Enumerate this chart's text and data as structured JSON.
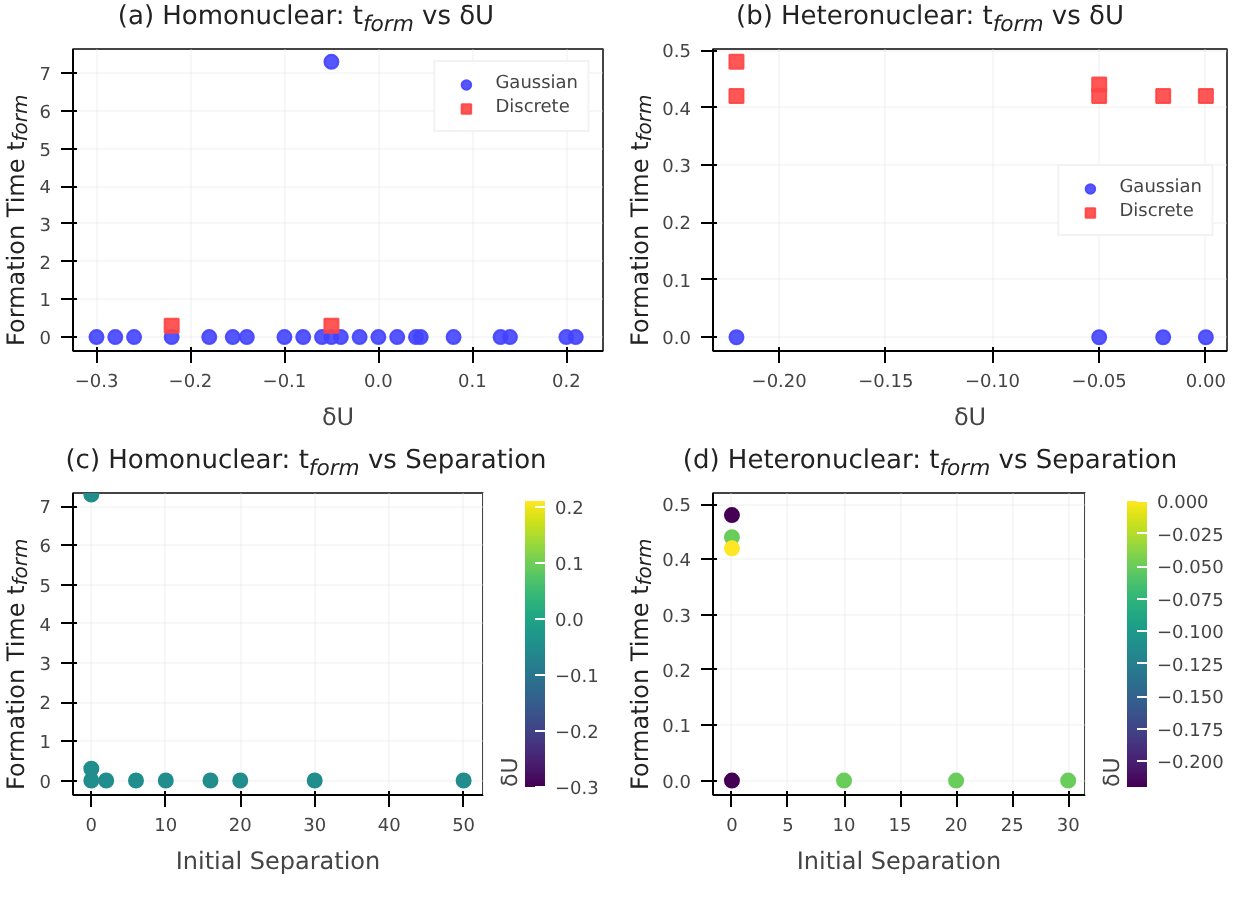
{
  "chart_data": [
    {
      "type": "scatter",
      "title": "(a) Homonuclear: t$_{form}$ vs δU",
      "xlabel": "δU",
      "ylabel": "Formation Time t$_{form}$",
      "xlim": [
        -0.325,
        0.239
      ],
      "ylim": [
        -0.37,
        7.64
      ],
      "xticks": [
        {
          "value": -0.3,
          "label": "−0.3"
        },
        {
          "value": -0.2,
          "label": "−0.2"
        },
        {
          "value": -0.1,
          "label": "−0.1"
        },
        {
          "value": 0,
          "label": "0.0"
        },
        {
          "value": 0.1,
          "label": "0.1"
        },
        {
          "value": 0.2,
          "label": "0.2"
        }
      ],
      "yticks": [
        0,
        1,
        2,
        3,
        4,
        5,
        6,
        7
      ],
      "grid": true,
      "legend": "top right",
      "series": [
        {
          "name": "Gaussian",
          "color": "#4444ff",
          "marker": "circle",
          "x": [
            -0.3,
            -0.28,
            -0.26,
            -0.22,
            -0.18,
            -0.155,
            -0.14,
            -0.1,
            -0.08,
            -0.06,
            -0.05,
            -0.04,
            -0.02,
            0,
            0.02,
            0.04,
            0.045,
            0.08,
            0.13,
            0.14,
            0.2,
            0.21,
            -0.05
          ],
          "values": [
            0,
            0,
            0,
            0,
            0,
            0,
            0,
            0,
            0,
            0,
            0,
            0,
            0,
            0,
            0,
            0,
            0,
            0,
            0,
            0,
            0,
            0,
            7.3
          ]
        },
        {
          "name": "Discrete",
          "color": "#ff4444",
          "marker": "square",
          "x": [
            -0.22,
            -0.05
          ],
          "values": [
            0.3,
            0.3
          ]
        }
      ]
    },
    {
      "type": "scatter",
      "title": "(b) Heteronuclear: t$_{form}$ vs δU",
      "xlabel": "δU",
      "ylabel": "Formation Time t$_{form}$",
      "xlim": [
        -0.231,
        0.0099
      ],
      "ylim": [
        -0.024,
        0.502
      ],
      "xticks": [
        {
          "value": -0.2,
          "label": "−0.20"
        },
        {
          "value": -0.15,
          "label": "−0.15"
        },
        {
          "value": -0.1,
          "label": "−0.10"
        },
        {
          "value": -0.05,
          "label": "−0.05"
        },
        {
          "value": 0,
          "label": "0.00"
        }
      ],
      "yticks": [
        {
          "value": 0,
          "label": "0.0"
        },
        0.1,
        0.2,
        0.3,
        0.4,
        0.5
      ],
      "grid": true,
      "legend": "right",
      "series": [
        {
          "name": "Gaussian",
          "color": "#4444ff",
          "marker": "circle",
          "x": [
            -0.22,
            -0.05,
            -0.02,
            0
          ],
          "values": [
            0,
            0,
            0,
            0
          ]
        },
        {
          "name": "Discrete",
          "color": "#ff4444",
          "marker": "square",
          "x": [
            -0.22,
            -0.22,
            -0.05,
            -0.05,
            -0.02,
            0
          ],
          "values": [
            0.48,
            0.42,
            0.44,
            0.42,
            0.42,
            0.42
          ]
        }
      ]
    },
    {
      "type": "scatter",
      "title": "(c) Homonuclear: t$_{form}$ vs Separation",
      "xlabel": "Initial Separation",
      "ylabel": "Formation Time t$_{form}$",
      "clabel": "δU",
      "xlim": [
        -2.46,
        52.6
      ],
      "ylim": [
        -0.37,
        7.34
      ],
      "xticks": [
        0,
        10,
        20,
        30,
        40,
        50
      ],
      "yticks": [
        0,
        1,
        2,
        3,
        4,
        5,
        6,
        7
      ],
      "grid": true,
      "clim": [
        -0.3,
        0.21
      ],
      "cticks": [
        {
          "value": -0.3,
          "label": "−0.3"
        },
        {
          "value": -0.2,
          "label": "−0.2"
        },
        {
          "value": -0.1,
          "label": "−0.1"
        },
        {
          "value": 0,
          "label": "0.0"
        },
        {
          "value": 0.1,
          "label": "0.1"
        },
        {
          "value": 0.2,
          "label": "0.2"
        }
      ],
      "x": [
        0,
        0,
        0,
        2,
        6,
        10,
        16,
        20,
        30,
        50
      ],
      "values": [
        7.3,
        0.3,
        0,
        0,
        0,
        0,
        0,
        0,
        0,
        0
      ],
      "cvalues": [
        -0.05,
        -0.05,
        -0.05,
        -0.05,
        -0.05,
        -0.05,
        -0.05,
        -0.05,
        -0.05,
        -0.05
      ]
    },
    {
      "type": "scatter",
      "title": "(d) Heteronuclear: t$_{form}$ vs Separation",
      "xlabel": "Initial Separation",
      "ylabel": "Formation Time t$_{form}$",
      "clabel": "δU",
      "xlim": [
        -1.69,
        31.5
      ],
      "ylim": [
        -0.026,
        0.52
      ],
      "xticks": [
        0,
        5,
        10,
        15,
        20,
        25,
        30
      ],
      "yticks": [
        {
          "value": 0,
          "label": "0.0"
        },
        0.1,
        0.2,
        0.3,
        0.4,
        0.5
      ],
      "grid": true,
      "clim": [
        -0.22,
        0
      ],
      "cticks": [
        {
          "value": 0,
          "label": "0.000"
        },
        {
          "value": -0.025,
          "label": "−0.025"
        },
        {
          "value": -0.05,
          "label": "−0.050"
        },
        {
          "value": -0.075,
          "label": "−0.075"
        },
        {
          "value": -0.1,
          "label": "−0.100"
        },
        {
          "value": -0.125,
          "label": "−0.125"
        },
        {
          "value": -0.15,
          "label": "−0.150"
        },
        {
          "value": -0.175,
          "label": "−0.175"
        },
        {
          "value": -0.2,
          "label": "−0.200"
        }
      ],
      "x": [
        0,
        0,
        0,
        0,
        10,
        20,
        30
      ],
      "values": [
        0.48,
        0.44,
        0.42,
        0,
        0,
        0,
        0
      ],
      "cvalues": [
        -0.22,
        -0.05,
        0,
        -0.22,
        -0.05,
        -0.05,
        -0.05
      ]
    }
  ]
}
